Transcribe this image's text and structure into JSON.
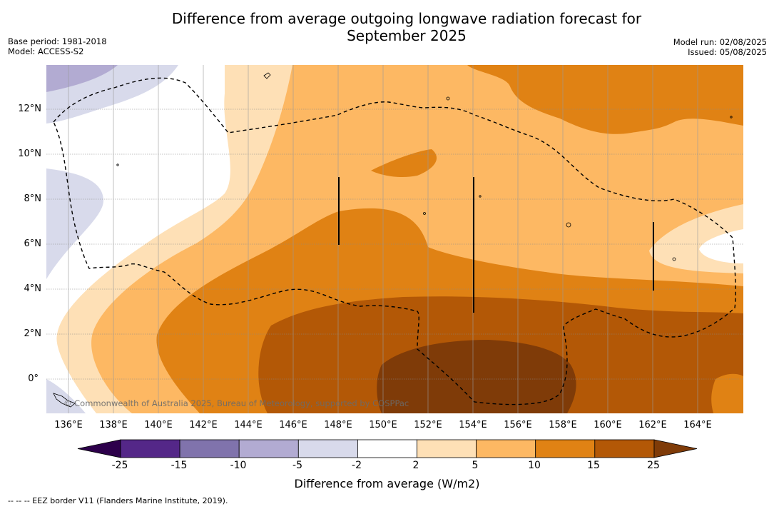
{
  "title_line1": "Difference from average outgoing longwave radiation forecast for",
  "title_line2": "September 2025",
  "meta_left": [
    "Base period: 1981-2018",
    "Model: ACCESS-S2"
  ],
  "meta_right": [
    "Model run: 02/08/2025",
    "Issued: 05/08/2025"
  ],
  "lat_labels": [
    "12°N",
    "10°N",
    "8°N",
    "6°N",
    "4°N",
    "2°N",
    "0°"
  ],
  "lon_labels": [
    "136°E",
    "138°E",
    "140°E",
    "142°E",
    "144°E",
    "146°E",
    "148°E",
    "150°E",
    "152°E",
    "154°E",
    "156°E",
    "158°E",
    "160°E",
    "162°E",
    "164°E"
  ],
  "colorbar": {
    "ticks": [
      "-25",
      "-15",
      "-10",
      "-5",
      "-2",
      "2",
      "5",
      "10",
      "15",
      "25"
    ],
    "colors": [
      "#542788",
      "#8073ac",
      "#b2abd2",
      "#d8daeb",
      "#ffffff",
      "#fee0b6",
      "#fdb863",
      "#e08214",
      "#b35806"
    ],
    "under_color": "#2d004b",
    "over_color": "#7f3b08",
    "label": "Difference from average (W/m2)"
  },
  "copyright": "© Commonwealth of Australia 2025, Bureau of Meteorology, supported by COSPPac",
  "legend_note": "--  --  -- EEZ border V11 (Flanders Marine Institute, 2019)."
}
